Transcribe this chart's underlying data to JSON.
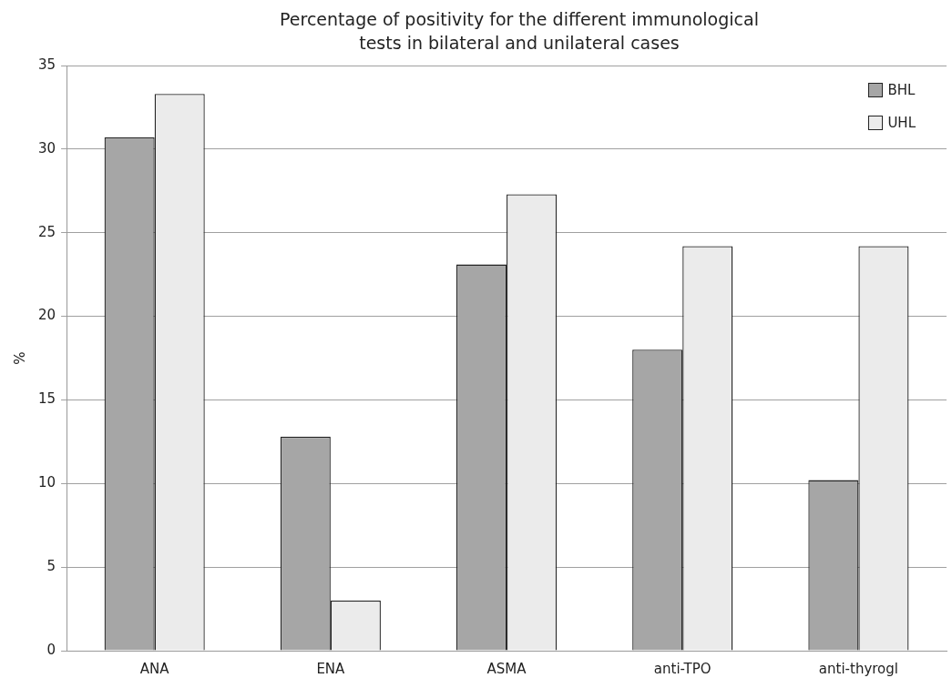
{
  "chart_data": {
    "type": "bar",
    "title": "Percentage of positivity for the different immunological tests in bilateral and unilateral cases",
    "ylabel": "%",
    "categories": [
      "ANA",
      "ENA",
      "ASMA",
      "anti-TPO",
      "anti-thyrogl"
    ],
    "series": [
      {
        "name": "BHL",
        "color": "#a6a6a6",
        "values": [
          30.7,
          12.8,
          23.1,
          18.0,
          10.2
        ]
      },
      {
        "name": "UHL",
        "color": "#ebebeb",
        "values": [
          33.3,
          3.0,
          27.3,
          24.2,
          24.2
        ]
      }
    ],
    "ylim": [
      0,
      35
    ],
    "yticks": [
      0,
      5,
      10,
      15,
      20,
      25,
      30,
      35
    ],
    "grid": "y",
    "legend": "top right"
  }
}
